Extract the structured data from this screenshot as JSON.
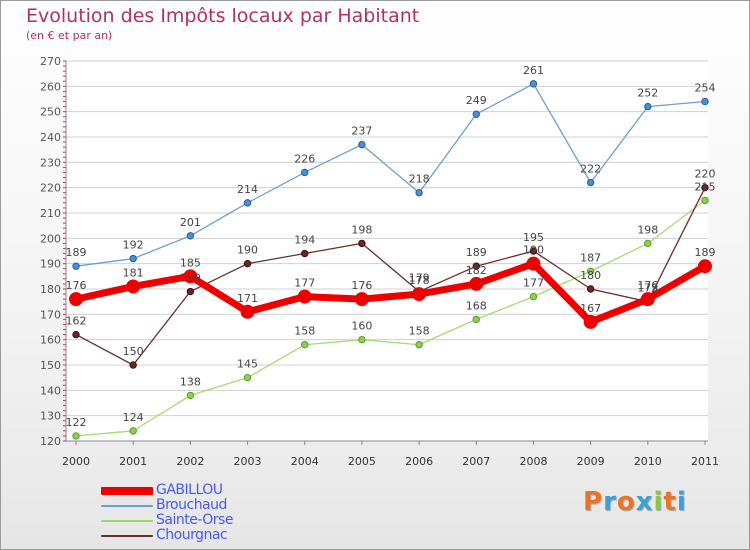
{
  "header": {
    "title": "Evolution des Impôts locaux par Habitant",
    "subtitle": "(en € et par an)"
  },
  "brand": {
    "text": "Proxiti",
    "colors": [
      "#e8742a",
      "#3aa0d8",
      "#e8742a",
      "#3aa0d8",
      "#8dc63f",
      "#e8742a",
      "#3aa0d8"
    ]
  },
  "chart_data": {
    "type": "line",
    "title": "Evolution des Impôts locaux par Habitant",
    "subtitle": "(en € et par an)",
    "xlabel": "",
    "ylabel": "",
    "x": [
      2000,
      2001,
      2002,
      2003,
      2004,
      2005,
      2006,
      2007,
      2008,
      2009,
      2010,
      2011
    ],
    "ylim": [
      120,
      270
    ],
    "yticks": [
      120,
      130,
      140,
      150,
      160,
      170,
      180,
      190,
      200,
      210,
      220,
      230,
      240,
      250,
      260,
      270
    ],
    "grid": "horizontal",
    "legend_position": "bottom-left",
    "series": [
      {
        "name": "GABILLOU",
        "color": "#ee0000",
        "values": [
          176,
          181,
          185,
          171,
          177,
          176,
          178,
          182,
          190,
          167,
          176,
          189
        ],
        "labels": [
          "176",
          "181",
          "185",
          "171",
          "177",
          "176",
          "178",
          "182",
          "190",
          "167",
          "176",
          "189"
        ]
      },
      {
        "name": "Brouchaud",
        "color": "#6a9fd4",
        "values": [
          189,
          192,
          201,
          214,
          226,
          237,
          218,
          249,
          261,
          222,
          252,
          254
        ],
        "labels": [
          "189",
          "192",
          "201",
          "214",
          "226",
          "237",
          "218",
          "249",
          "261",
          "222",
          "252",
          "254"
        ]
      },
      {
        "name": "Sainte-Orse",
        "color": "#9cd866",
        "values": [
          122,
          124,
          138,
          145,
          158,
          160,
          158,
          168,
          177,
          187,
          198,
          215
        ],
        "labels": [
          "122",
          "124",
          "138",
          "145",
          "158",
          "160",
          "158",
          "168",
          "177",
          "187",
          "198",
          "215"
        ]
      },
      {
        "name": "Chourgnac",
        "color": "#6b2c2c",
        "values": [
          162,
          150,
          179,
          190,
          194,
          198,
          179,
          189,
          195,
          180,
          175,
          220
        ],
        "labels": [
          "162",
          "150",
          "179",
          "190",
          "194",
          "198",
          "179",
          "189",
          "195",
          "180",
          "175",
          "220"
        ]
      }
    ]
  }
}
